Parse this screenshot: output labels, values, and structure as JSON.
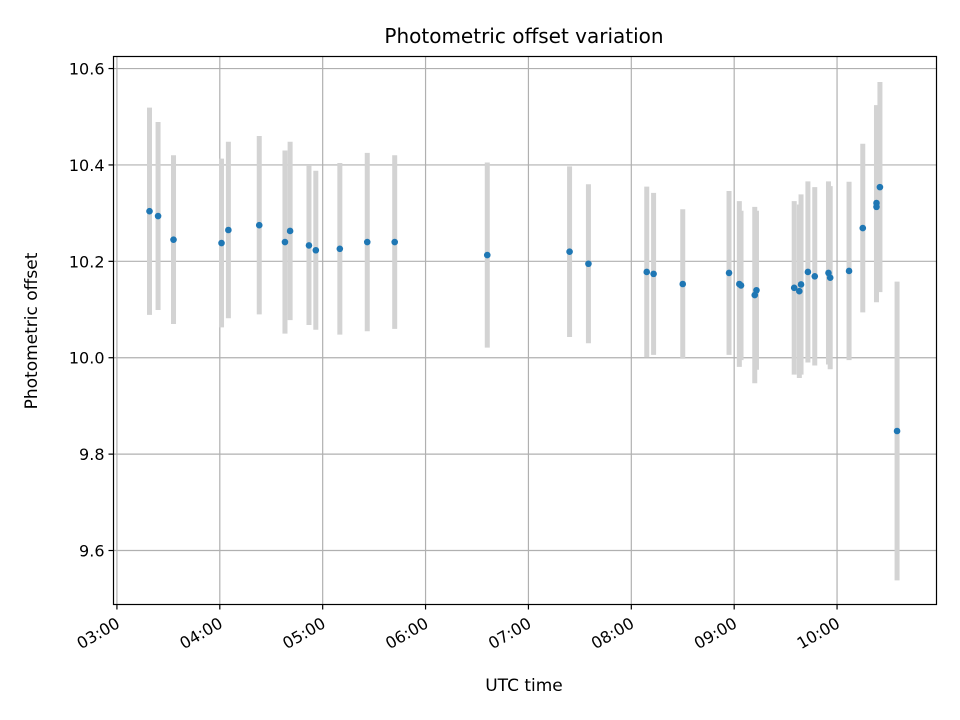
{
  "chart_data": {
    "type": "scatter",
    "title": "Photometric offset variation",
    "xlabel": "UTC time",
    "ylabel": "Photometric offset",
    "x_ticks": [
      "03:00",
      "04:00",
      "05:00",
      "06:00",
      "07:00",
      "08:00",
      "09:00",
      "10:00"
    ],
    "y_ticks": [
      "9.6",
      "9.8",
      "10.0",
      "10.2",
      "10.4",
      "10.6"
    ],
    "xlim": [
      "02:58",
      "10:58"
    ],
    "ylim": [
      9.488,
      10.625
    ],
    "grid": true,
    "colors": {
      "marker": "#1f77b4",
      "errorbar": "#d3d3d3",
      "grid": "#b0b0b0"
    },
    "series": [
      {
        "points": [
          {
            "x": "03:19",
            "y": 10.304,
            "err": 0.215
          },
          {
            "x": "03:24",
            "y": 10.294,
            "err": 0.195
          },
          {
            "x": "03:33",
            "y": 10.245,
            "err": 0.175
          },
          {
            "x": "04:01",
            "y": 10.238,
            "err": 0.175
          },
          {
            "x": "04:05",
            "y": 10.265,
            "err": 0.183
          },
          {
            "x": "04:23",
            "y": 10.275,
            "err": 0.185
          },
          {
            "x": "04:38",
            "y": 10.24,
            "err": 0.19
          },
          {
            "x": "04:41",
            "y": 10.263,
            "err": 0.185
          },
          {
            "x": "04:52",
            "y": 10.233,
            "err": 0.165
          },
          {
            "x": "04:56",
            "y": 10.223,
            "err": 0.165
          },
          {
            "x": "05:10",
            "y": 10.226,
            "err": 0.178
          },
          {
            "x": "05:26",
            "y": 10.24,
            "err": 0.185
          },
          {
            "x": "05:42",
            "y": 10.24,
            "err": 0.18
          },
          {
            "x": "06:36",
            "y": 10.213,
            "err": 0.192
          },
          {
            "x": "07:24",
            "y": 10.22,
            "err": 0.177
          },
          {
            "x": "07:35",
            "y": 10.195,
            "err": 0.165
          },
          {
            "x": "08:09",
            "y": 10.178,
            "err": 0.177
          },
          {
            "x": "08:13",
            "y": 10.174,
            "err": 0.168
          },
          {
            "x": "08:30",
            "y": 10.153,
            "err": 0.155
          },
          {
            "x": "08:57",
            "y": 10.176,
            "err": 0.17
          },
          {
            "x": "09:03",
            "y": 10.153,
            "err": 0.172
          },
          {
            "x": "09:04",
            "y": 10.15,
            "err": 0.155
          },
          {
            "x": "09:12",
            "y": 10.13,
            "err": 0.183
          },
          {
            "x": "09:13",
            "y": 10.14,
            "err": 0.165
          },
          {
            "x": "09:35",
            "y": 10.145,
            "err": 0.18
          },
          {
            "x": "09:38",
            "y": 10.138,
            "err": 0.18
          },
          {
            "x": "09:39",
            "y": 10.152,
            "err": 0.187
          },
          {
            "x": "09:43",
            "y": 10.178,
            "err": 0.188
          },
          {
            "x": "09:47",
            "y": 10.169,
            "err": 0.185
          },
          {
            "x": "09:55",
            "y": 10.176,
            "err": 0.19
          },
          {
            "x": "09:56",
            "y": 10.166,
            "err": 0.19
          },
          {
            "x": "10:07",
            "y": 10.18,
            "err": 0.185
          },
          {
            "x": "10:15",
            "y": 10.269,
            "err": 0.175
          },
          {
            "x": "10:23",
            "y": 10.321,
            "err": 0.203
          },
          {
            "x": "10:23",
            "y": 10.313,
            "err": 0.198
          },
          {
            "x": "10:25",
            "y": 10.354,
            "err": 0.218
          },
          {
            "x": "10:35",
            "y": 9.848,
            "err": 0.31
          }
        ]
      }
    ]
  }
}
